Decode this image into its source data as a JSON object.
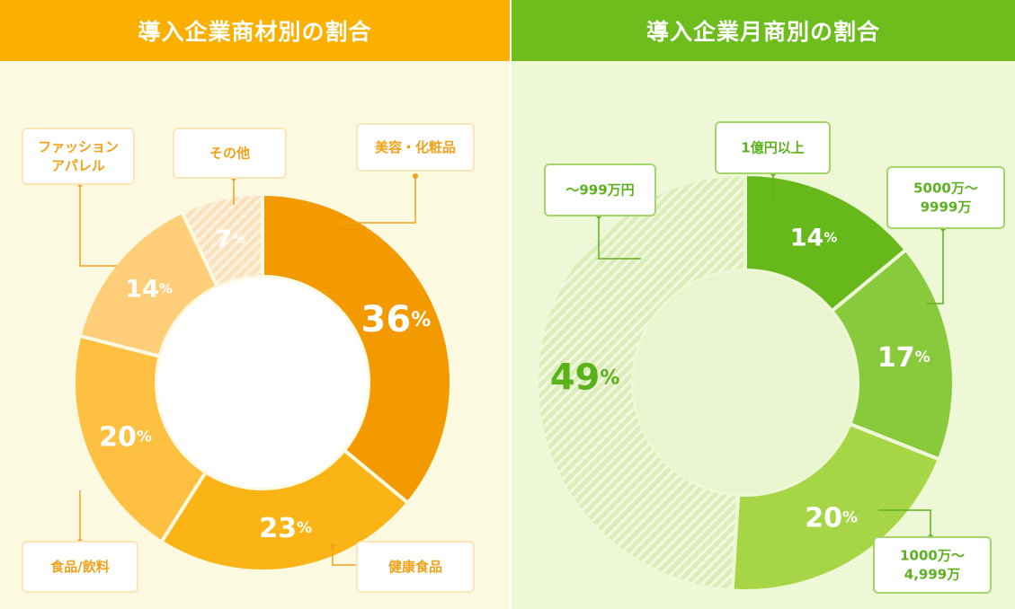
{
  "chart_data": [
    {
      "type": "pie",
      "title": "導入企業商材別の割合",
      "categories": [
        "美容・化粧品",
        "健康食品",
        "食品/飲料",
        "ファッション\nアパレル",
        "その他"
      ],
      "values": [
        36,
        23,
        20,
        14,
        7
      ],
      "value_labels": [
        "36",
        "23",
        "20",
        "14",
        "7"
      ],
      "unit": "%",
      "colors": [
        "#f29a00",
        "#fbb416",
        "#fdc040",
        "#fecf78",
        "#fbe2bd"
      ],
      "label_colors": [
        "#ffffff",
        "#ffffff",
        "#ffffff",
        "#ffffff",
        "#ffffff"
      ]
    },
    {
      "type": "pie",
      "title": "導入企業月商別の割合",
      "categories": [
        "1億円以上",
        "5000万〜\n9999万",
        "1000万〜\n4,999万",
        "〜999万円"
      ],
      "values": [
        14,
        17,
        20,
        49
      ],
      "value_labels": [
        "14",
        "17",
        "20",
        "49"
      ],
      "unit": "%",
      "colors": [
        "#67b91b",
        "#89c93c",
        "#a6d645",
        "#dcedb8"
      ],
      "label_colors": [
        "#ffffff",
        "#ffffff",
        "#ffffff",
        "#5ab21a"
      ]
    }
  ]
}
